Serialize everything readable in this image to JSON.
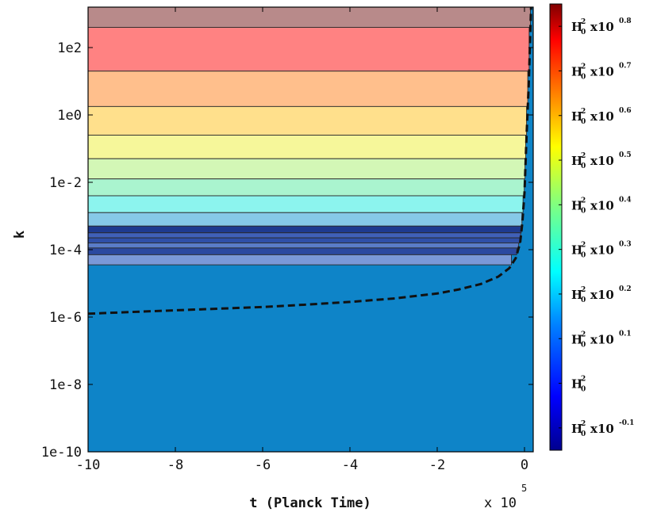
{
  "chart_data": {
    "type": "heatmap",
    "title": "",
    "xlabel": "t (Planck Time)",
    "x_multiplier_label": "x 10",
    "x_multiplier_exponent": "5",
    "ylabel": "k",
    "xlim": [
      -10,
      0.2
    ],
    "ylim_log10": [
      -10,
      3.2
    ],
    "y_scale": "log",
    "x_ticks": [
      -10,
      -8,
      -6,
      -4,
      -2,
      0
    ],
    "x_tick_labels": [
      "-10",
      "-8",
      "-6",
      "-4",
      "-2",
      "0"
    ],
    "y_ticks_log10": [
      2,
      0,
      -2,
      -4,
      -6,
      -8,
      -10
    ],
    "y_tick_labels": [
      "1e2",
      "1e0",
      "1e-2",
      "1e-4",
      "1e-6",
      "1e-8",
      "1e-10"
    ],
    "colorbar": {
      "range_exponent": [
        -0.15,
        0.85
      ],
      "base_label": "H",
      "subscript": "0",
      "superscript": "2",
      "ticks": [
        {
          "exponent": 0.8,
          "times": "x10",
          "power": "0.8"
        },
        {
          "exponent": 0.7,
          "times": "x10",
          "power": "0.7"
        },
        {
          "exponent": 0.6,
          "times": "x10",
          "power": "0.6"
        },
        {
          "exponent": 0.5,
          "times": "x10",
          "power": "0.5"
        },
        {
          "exponent": 0.4,
          "times": "x10",
          "power": "0.4"
        },
        {
          "exponent": 0.3,
          "times": "x10",
          "power": "0.3"
        },
        {
          "exponent": 0.2,
          "times": "x10",
          "power": "0.2"
        },
        {
          "exponent": 0.1,
          "times": "x10",
          "power": "0.1"
        },
        {
          "exponent": 0.0,
          "times": "",
          "power": ""
        },
        {
          "exponent": -0.1,
          "times": "x10",
          "power": "-0.1"
        }
      ]
    },
    "bands": [
      {
        "log10_k_low": 2.6,
        "log10_k_high": 3.2,
        "color": "#b88a8a"
      },
      {
        "log10_k_low": 1.3,
        "log10_k_high": 2.6,
        "color": "#ff8282"
      },
      {
        "log10_k_low": 0.25,
        "log10_k_high": 1.3,
        "color": "#ffbf8c"
      },
      {
        "log10_k_low": -0.6,
        "log10_k_high": 0.25,
        "color": "#ffe08c"
      },
      {
        "log10_k_low": -1.3,
        "log10_k_high": -0.6,
        "color": "#f6f79a"
      },
      {
        "log10_k_low": -1.9,
        "log10_k_high": -1.3,
        "color": "#d3f7b6"
      },
      {
        "log10_k_low": -2.4,
        "log10_k_high": -1.9,
        "color": "#aaf4cf"
      },
      {
        "log10_k_low": -2.9,
        "log10_k_high": -2.4,
        "color": "#8cf4ee"
      },
      {
        "log10_k_low": -3.3,
        "log10_k_high": -2.9,
        "color": "#86c9e8"
      },
      {
        "log10_k_low": -3.5,
        "log10_k_high": -3.3,
        "color": "#1e3a8f"
      },
      {
        "log10_k_low": -3.65,
        "log10_k_high": -3.5,
        "color": "#4060b8"
      },
      {
        "log10_k_low": -3.8,
        "log10_k_high": -3.65,
        "color": "#2f4fa8"
      },
      {
        "log10_k_low": -3.95,
        "log10_k_high": -3.8,
        "color": "#5a7cc8"
      },
      {
        "log10_k_low": -4.15,
        "log10_k_high": -3.95,
        "color": "#2b49a0"
      },
      {
        "log10_k_low": -4.45,
        "log10_k_high": -4.15,
        "color": "#7a98d8"
      },
      {
        "log10_k_low": -5.9,
        "log10_k_high": -4.45,
        "color": "#84c1e6"
      }
    ],
    "background_color": "#0e84c8",
    "contour_boundary": {
      "t": [
        -10,
        -9,
        -8,
        -7,
        -6,
        -5,
        -4,
        -3,
        -2,
        -1.5,
        -1,
        -0.6,
        -0.35,
        -0.2,
        -0.1,
        -0.05,
        0,
        0.05,
        0.1,
        0.15
      ],
      "log10_k": [
        -5.9,
        -5.85,
        -5.8,
        -5.75,
        -5.7,
        -5.63,
        -5.55,
        -5.45,
        -5.3,
        -5.18,
        -5.02,
        -4.8,
        -4.55,
        -4.25,
        -3.8,
        -3.2,
        -2.3,
        -0.5,
        1.0,
        3.2
      ]
    }
  }
}
